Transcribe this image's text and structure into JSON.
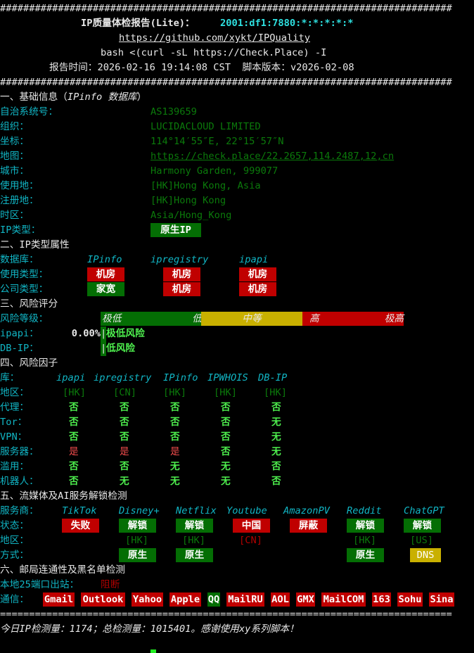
{
  "colors": {
    "red": "#c00000",
    "green": "#046e04",
    "yellow": "#c9b000",
    "cyan": "#11b5c4",
    "value_green": "#0b7a0b",
    "bright_green": "#4ef04e"
  },
  "header": {
    "hash_line": "##############################################################################",
    "title": "IP质量体检报告(Lite)：",
    "ip": "2001:df1:7880:*:*:*:*:*",
    "repo_url": "https://github.com/xykt/IPQuality",
    "command": "bash <(curl -sL https://Check.Place) -I",
    "report_time_label": "报告时间：",
    "report_time": "2026-02-16 19:14:08 CST",
    "version_label": "脚本版本：",
    "version": "v2026-02-08"
  },
  "basic": {
    "title": "一、基础信息（",
    "title_db": "IPinfo 数据库",
    "title_end": "）",
    "rows": [
      {
        "label": "自治系统号：",
        "value": "AS139659"
      },
      {
        "label": "组织：",
        "value": "LUCIDACLOUD LIMITED"
      },
      {
        "label": "坐标：",
        "value": "114°14′55″E, 22°15′57″N"
      },
      {
        "label": "地图：",
        "value": "https://check.place/22.2657,114.2487,12,cn",
        "link": true
      },
      {
        "label": "城市：",
        "value": "Harmony Garden, 999077"
      },
      {
        "label": "使用地：",
        "value": "[HK]Hong Kong, Asia"
      },
      {
        "label": "注册地：",
        "value": "[HK]Hong Kong"
      },
      {
        "label": "时区：",
        "value": "Asia/Hong_Kong"
      }
    ],
    "ip_type_label": "IP类型：",
    "ip_type": {
      "text": "原生IP",
      "color": "green"
    }
  },
  "ip_type_attr": {
    "title": "二、IP类型属性",
    "db_label": "数据库：",
    "dbs": [
      "IPinfo",
      "ipregistry",
      "ipapi"
    ],
    "usage_label": "使用类型：",
    "usage": [
      {
        "text": "机房",
        "color": "red"
      },
      {
        "text": "机房",
        "color": "red"
      },
      {
        "text": "机房",
        "color": "red"
      }
    ],
    "company_label": "公司类型：",
    "company": [
      {
        "text": "家宽",
        "color": "green"
      },
      {
        "text": "机房",
        "color": "red"
      },
      {
        "text": "机房",
        "color": "red"
      }
    ]
  },
  "risk_score": {
    "title": "三、风险评分",
    "level_label": "风险等级：",
    "scale": [
      {
        "left": "极低",
        "right": "低",
        "color": "green"
      },
      {
        "center": "中等",
        "color": "yellow"
      },
      {
        "left": "高",
        "right": "极高",
        "color": "red"
      }
    ],
    "rows": [
      {
        "label": "ipapi：",
        "score": "0.00%",
        "marker": "|",
        "verdict": "极低风险"
      },
      {
        "label": "DB-IP：",
        "score": "",
        "marker": "|",
        "verdict": "低风险"
      }
    ]
  },
  "risk_factors": {
    "title": "四、风险因子",
    "db_label": "库：",
    "dbs": [
      "ipapi",
      "ipregistry",
      "IPinfo",
      "IPWHOIS",
      "DB-IP"
    ],
    "region_label": "地区：",
    "regions": [
      "[HK]",
      "[CN]",
      "[HK]",
      "[HK]",
      "[HK]"
    ],
    "rows": [
      {
        "label": "代理：",
        "values": [
          "否",
          "否",
          "否",
          "否",
          "否"
        ]
      },
      {
        "label": "Tor：",
        "values": [
          "否",
          "否",
          "否",
          "否",
          "无"
        ]
      },
      {
        "label": "VPN：",
        "values": [
          "否",
          "否",
          "否",
          "否",
          "无"
        ]
      },
      {
        "label": "服务器：",
        "values": [
          "是",
          "是",
          "是",
          "否",
          "无"
        ]
      },
      {
        "label": "滥用：",
        "values": [
          "否",
          "否",
          "无",
          "无",
          "否"
        ]
      },
      {
        "label": "机器人：",
        "values": [
          "否",
          "无",
          "无",
          "无",
          "否"
        ]
      }
    ]
  },
  "streaming": {
    "title": "五、流媒体及AI服务解锁检测",
    "provider_label": "服务商：",
    "status_label": "状态：",
    "region_label": "地区：",
    "method_label": "方式：",
    "services": [
      {
        "name": "TikTok",
        "status": "失败",
        "status_color": "red",
        "region": null,
        "method": null
      },
      {
        "name": "Disney+",
        "status": "解锁",
        "status_color": "green",
        "region": "[HK]",
        "method": "原生",
        "method_color": "green"
      },
      {
        "name": "Netflix",
        "status": "解锁",
        "status_color": "green",
        "region": "[HK]",
        "method": "原生",
        "method_color": "green"
      },
      {
        "name": "Youtube",
        "status": "中国",
        "status_color": "red",
        "region": "[CN]",
        "region_color": "red",
        "method": null
      },
      {
        "name": "AmazonPV",
        "status": "屏蔽",
        "status_color": "red",
        "region": null,
        "method": null
      },
      {
        "name": "Reddit",
        "status": "解锁",
        "status_color": "green",
        "region": "[HK]",
        "method": "原生",
        "method_color": "green"
      },
      {
        "name": "ChatGPT",
        "status": "解锁",
        "status_color": "green",
        "region": "[US]",
        "method": "DNS",
        "method_color": "yellow"
      }
    ]
  },
  "mail": {
    "title": "六、邮局连通性及黑名单检测",
    "port25_label": "本地25端口出站：",
    "port25_value": "阻断",
    "comm_label": "通信：",
    "providers": [
      {
        "name": "Gmail",
        "color": "red"
      },
      {
        "name": "Outlook",
        "color": "red"
      },
      {
        "name": "Yahoo",
        "color": "red"
      },
      {
        "name": "Apple",
        "color": "red"
      },
      {
        "name": "QQ",
        "color": "green"
      },
      {
        "name": "MailRU",
        "color": "red"
      },
      {
        "name": "AOL",
        "color": "red"
      },
      {
        "name": "GMX",
        "color": "red"
      },
      {
        "name": "MailCOM",
        "color": "red"
      },
      {
        "name": "163",
        "color": "red"
      },
      {
        "name": "Sohu",
        "color": "red"
      },
      {
        "name": "Sina",
        "color": "red"
      }
    ]
  },
  "footer": {
    "eq_line": "==============================================================================",
    "prefix": "今日IP检测量：",
    "today_count": "1174",
    "mid": "；总检测量：",
    "total_count": "1015401",
    "suffix": "。感谢使用xy系列脚本！"
  }
}
